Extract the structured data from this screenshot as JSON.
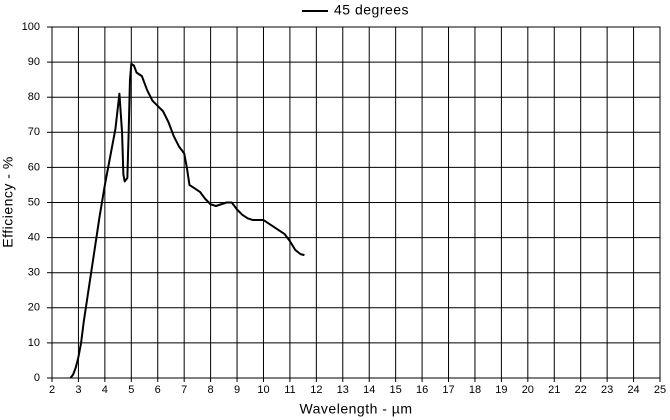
{
  "chart_data": {
    "type": "line",
    "xlabel": "Wavelength - µm",
    "ylabel": "Efficiency - %",
    "x": [
      2.7,
      2.8,
      2.9,
      3.0,
      3.1,
      3.2,
      3.4,
      3.6,
      3.8,
      4.0,
      4.2,
      4.4,
      4.55,
      4.65,
      4.7,
      4.75,
      4.85,
      4.9,
      4.95,
      5.0,
      5.1,
      5.2,
      5.4,
      5.6,
      5.8,
      6.0,
      6.2,
      6.4,
      6.6,
      6.8,
      7.0,
      7.1,
      7.2,
      7.4,
      7.6,
      7.8,
      8.0,
      8.2,
      8.4,
      8.6,
      8.8,
      9.0,
      9.2,
      9.4,
      9.6,
      10.0,
      10.4,
      10.8,
      11.0,
      11.2,
      11.4,
      11.55
    ],
    "series": [
      {
        "name": "45 degrees",
        "color": "#000000",
        "values": [
          0,
          1,
          3,
          6,
          10,
          16,
          26,
          36,
          46,
          55,
          63,
          71,
          81,
          70,
          58,
          56,
          57,
          70,
          85,
          89.5,
          89,
          87,
          86,
          82,
          79,
          77.5,
          76,
          73,
          69,
          66,
          64,
          60,
          55,
          54,
          53,
          51,
          49.5,
          49,
          49.5,
          50,
          50,
          48,
          46.5,
          45.5,
          45,
          45,
          43,
          41,
          39,
          36.5,
          35.3,
          35
        ]
      }
    ],
    "xlim": [
      2,
      25
    ],
    "xticks": [
      2,
      3,
      4,
      5,
      6,
      7,
      8,
      9,
      10,
      11,
      12,
      13,
      14,
      15,
      16,
      17,
      18,
      19,
      20,
      21,
      22,
      23,
      24,
      25
    ],
    "ylim": [
      0,
      100
    ],
    "yticks": [
      0,
      10,
      20,
      30,
      40,
      50,
      60,
      70,
      80,
      90,
      100
    ],
    "grid": true,
    "legend": "top"
  }
}
